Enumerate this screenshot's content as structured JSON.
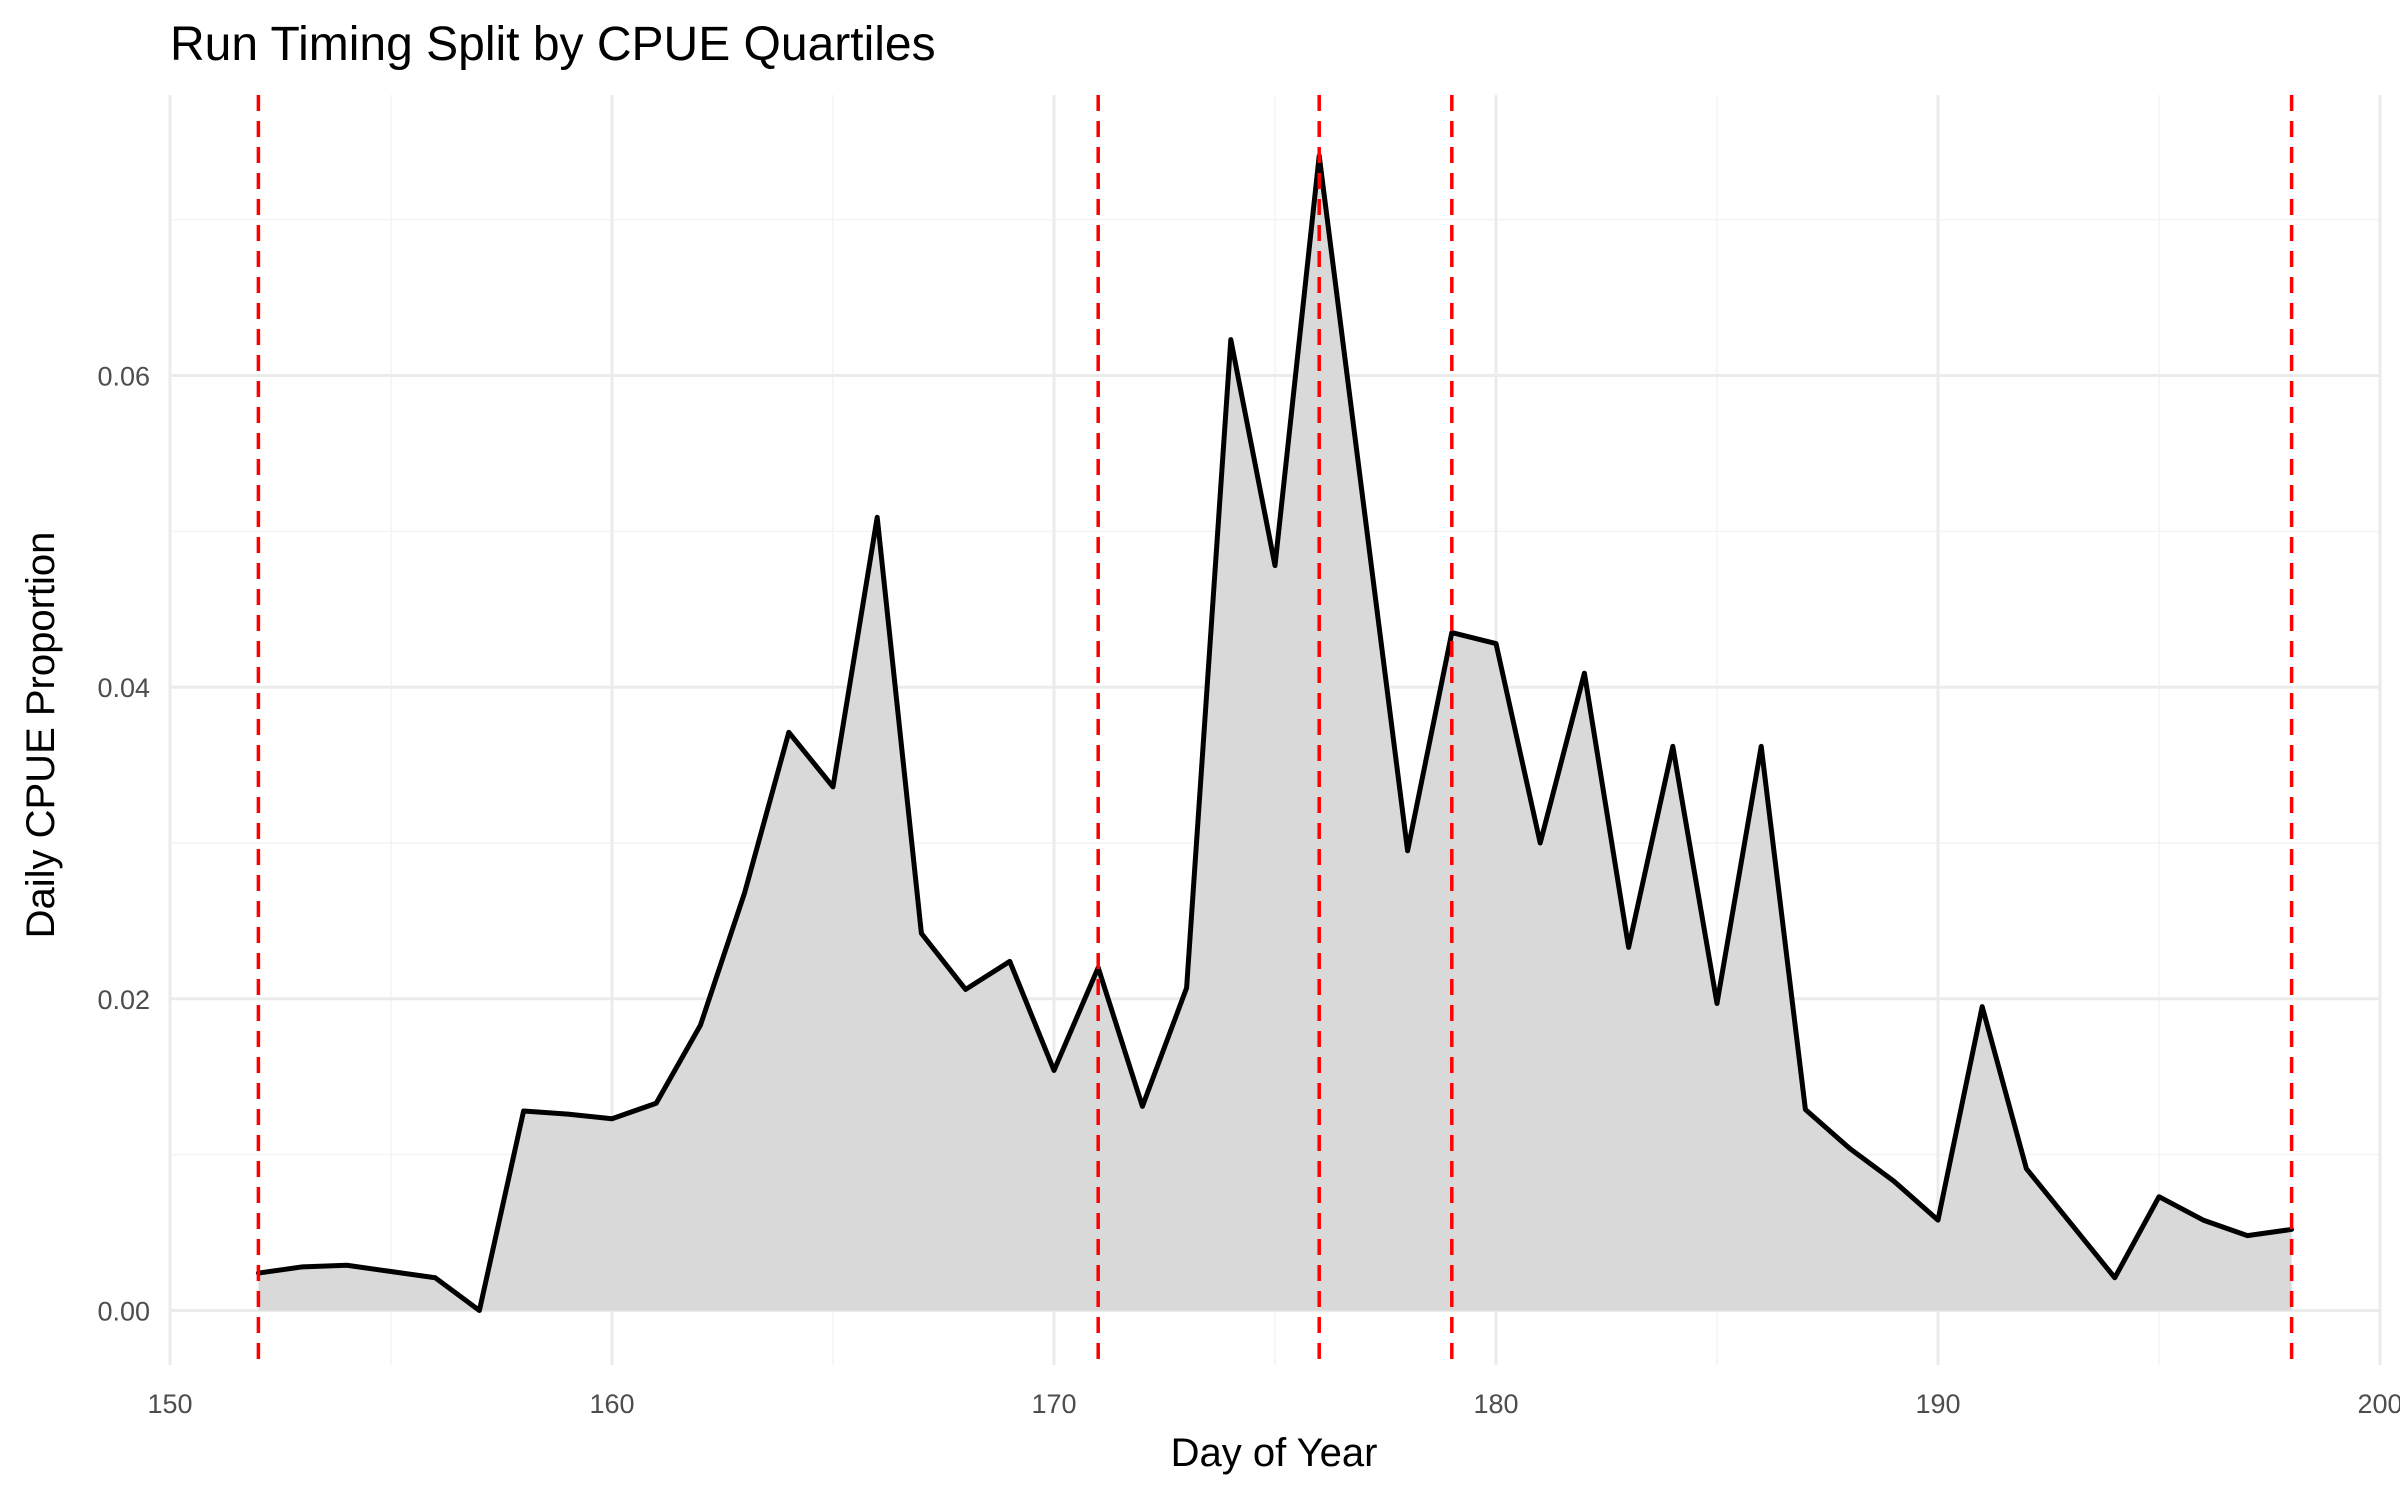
{
  "chart_data": {
    "type": "area",
    "title": "Run Timing Split by CPUE Quartiles",
    "xlabel": "Day of Year",
    "ylabel": "Daily CPUE Proportion",
    "xlim": [
      150,
      200
    ],
    "ylim": [
      -0.0035,
      0.078
    ],
    "x_major_ticks": [
      150,
      160,
      170,
      180,
      190,
      200
    ],
    "x_minor_ticks": [
      155,
      165,
      175,
      185,
      195
    ],
    "y_major_ticks": [
      0,
      0.02,
      0.04,
      0.06
    ],
    "y_minor_ticks": [
      0.01,
      0.03,
      0.05,
      0.07
    ],
    "x_tick_labels": [
      "150",
      "160",
      "170",
      "180",
      "190",
      "200"
    ],
    "y_tick_labels": [
      "0.00",
      "0.02",
      "0.04",
      "0.06"
    ],
    "grid": true,
    "series": [
      {
        "x": [
          152,
          153,
          154,
          155,
          156,
          157,
          158,
          159,
          160,
          161,
          162,
          163,
          164,
          165,
          166,
          167,
          168,
          169,
          170,
          171,
          172,
          173,
          174,
          175,
          176,
          177,
          178,
          179,
          180,
          181,
          182,
          183,
          184,
          185,
          186,
          187,
          188,
          189,
          190,
          191,
          192,
          193,
          194,
          195,
          196,
          197,
          198
        ],
        "values": [
          0.0024,
          0.0028,
          0.0029,
          0.0025,
          0.0021,
          0.0,
          0.0128,
          0.0126,
          0.0123,
          0.0133,
          0.0183,
          0.0268,
          0.0371,
          0.0336,
          0.0509,
          0.0242,
          0.0206,
          0.0224,
          0.0154,
          0.022,
          0.0131,
          0.0207,
          0.0623,
          0.0478,
          0.0741,
          0.0518,
          0.0295,
          0.0435,
          0.0428,
          0.03,
          0.0409,
          0.0233,
          0.0362,
          0.0197,
          0.0362,
          0.0129,
          0.0104,
          0.0083,
          0.0058,
          0.0195,
          0.0091,
          0.0056,
          0.0021,
          0.0073,
          0.0058,
          0.0048,
          0.0052
        ]
      }
    ],
    "quartile_days": [
      152,
      171,
      176,
      179,
      198
    ],
    "colors": {
      "area_fill": "#d9d9d9",
      "line": "#000000",
      "quartile_line": "#ff0000",
      "grid_major": "#ebebeb",
      "grid_minor": "#f4f4f4",
      "tick_text": "#4d4d4d"
    }
  }
}
